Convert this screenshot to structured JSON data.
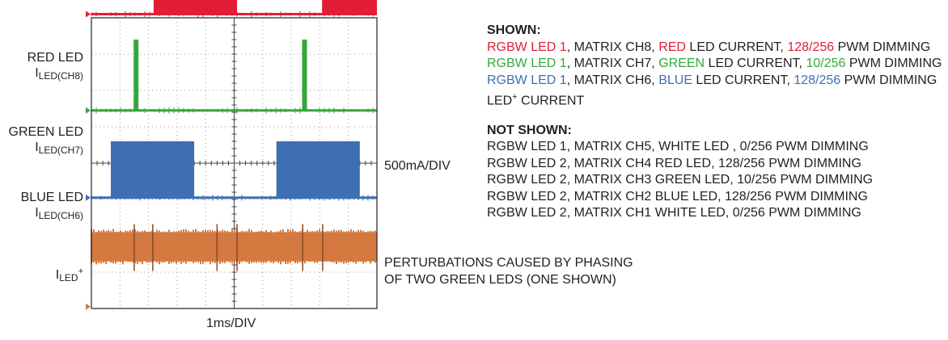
{
  "chart_data": {
    "type": "line",
    "title": "",
    "xlabel": "1ms/DIV",
    "ylabel": "500mA/DIV",
    "grid": true,
    "x_divisions": 10,
    "y_divisions": 8,
    "series": [
      {
        "name": "RED LED",
        "sub": "LED(CH8)",
        "color": "#e21e36",
        "low_div": 8.1,
        "high_div": 9.6,
        "on_intervals_div": [
          [
            2.2,
            5.1
          ],
          [
            8.1,
            10
          ]
        ]
      },
      {
        "name": "GREEN LED",
        "sub": "LED(CH7)",
        "color": "#36a63c",
        "low_div": 5.45,
        "high_div": 7.4,
        "on_intervals_div": [
          [
            1.5,
            1.65
          ],
          [
            7.4,
            7.55
          ]
        ]
      },
      {
        "name": "BLUE LED",
        "sub": "LED(CH6)",
        "color": "#3e6fb5",
        "low_div": 3.05,
        "high_div": 4.6,
        "on_intervals_div": [
          [
            0.7,
            3.6
          ],
          [
            6.5,
            9.4
          ]
        ]
      },
      {
        "name": "I",
        "sub": "LED",
        "sup": "+",
        "color": "#d4793f",
        "low_div": 1.3,
        "high_div": 2.1,
        "spikes_div": [
          1.5,
          2.15,
          4.4,
          5.1,
          7.4,
          8.1
        ]
      }
    ]
  },
  "side_labels": {
    "scale": "500mA/DIV",
    "perturb_line1": "PERTURBATIONS CAUSED BY PHASING",
    "perturb_line2": "OF TWO GREEN LEDS (ONE SHOWN)"
  },
  "info": {
    "shown_header": "SHOWN:",
    "shown": [
      {
        "a": "RGBW LED 1",
        "b": ", MATRIX CH8, ",
        "c": "RED",
        "d": " LED CURRENT, ",
        "e": "128/256",
        "f": " PWM DIMMING",
        "color": "red"
      },
      {
        "a": "RGBW LED 1",
        "b": ", MATRIX CH7, ",
        "c": "GREEN",
        "d": " LED CURRENT, ",
        "e": "10/256",
        "f": " PWM DIMMING",
        "color": "green"
      },
      {
        "a": "RGBW LED 1",
        "b": ", MATRIX CH6, ",
        "c": "BLUE",
        "d": " LED CURRENT, ",
        "e": "128/256",
        "f": " PWM DIMMING",
        "color": "blue"
      }
    ],
    "shown_last_main": "LED",
    "shown_last_sup": "+",
    "shown_last_rest": " CURRENT",
    "not_shown_header": "NOT SHOWN:",
    "not_shown": [
      "RGBW LED 1, MATRIX CH5, WHITE LED , 0/256 PWM DIMMING",
      "RGBW LED 2, MATRIX CH4 RED LED, 128/256 PWM DIMMING",
      "RGBW LED 2, MATRIX CH3 GREEN LED, 10/256 PWM DIMMING",
      "RGBW LED 2, MATRIX CH2 BLUE LED, 128/256 PWM DIMMING",
      "RGBW LED 2, MATRIX CH1 WHITE LED, 0/256 PWM DIMMING"
    ]
  }
}
